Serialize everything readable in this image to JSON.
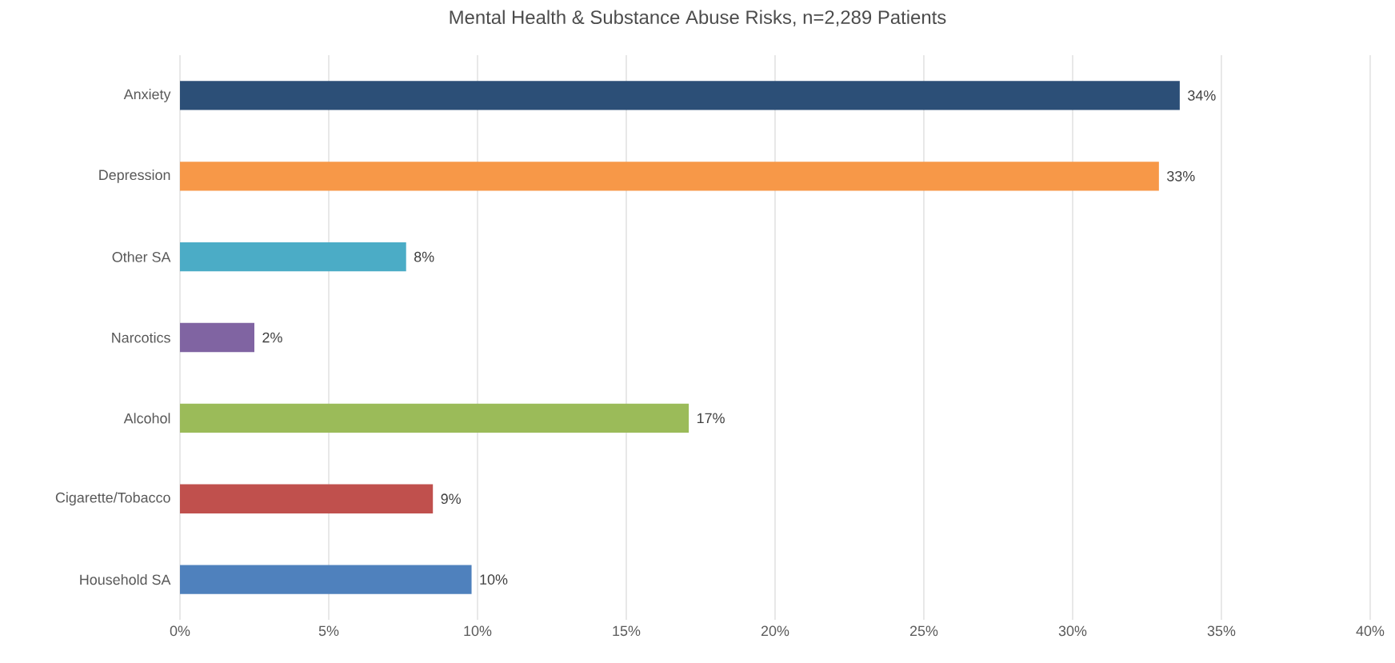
{
  "chart_data": {
    "type": "bar",
    "orientation": "horizontal",
    "title": "Mental Health & Substance Abuse Risks, n=2,289 Patients",
    "categories": [
      "Anxiety",
      "Depression",
      "Other SA",
      "Narcotics",
      "Alcohol",
      "Cigarette/Tobacco",
      "Household SA"
    ],
    "values": [
      33.6,
      32.9,
      7.6,
      2.5,
      17.1,
      8.5,
      9.8
    ],
    "value_labels": [
      "34%",
      "33%",
      "8%",
      "2%",
      "17%",
      "9%",
      "10%"
    ],
    "colors": [
      "#2c4f77",
      "#f79848",
      "#4bacc6",
      "#8064a2",
      "#9bbb59",
      "#c0504d",
      "#4f81bd"
    ],
    "xlim": [
      0,
      40
    ],
    "xticks": [
      {
        "value": 0,
        "label": "0%"
      },
      {
        "value": 5,
        "label": "5%"
      },
      {
        "value": 10,
        "label": "10%"
      },
      {
        "value": 15,
        "label": "15%"
      },
      {
        "value": 20,
        "label": "20%"
      },
      {
        "value": 25,
        "label": "25%"
      },
      {
        "value": 30,
        "label": "30%"
      },
      {
        "value": 35,
        "label": "35%"
      },
      {
        "value": 40,
        "label": "40%"
      }
    ],
    "grid": "x"
  }
}
